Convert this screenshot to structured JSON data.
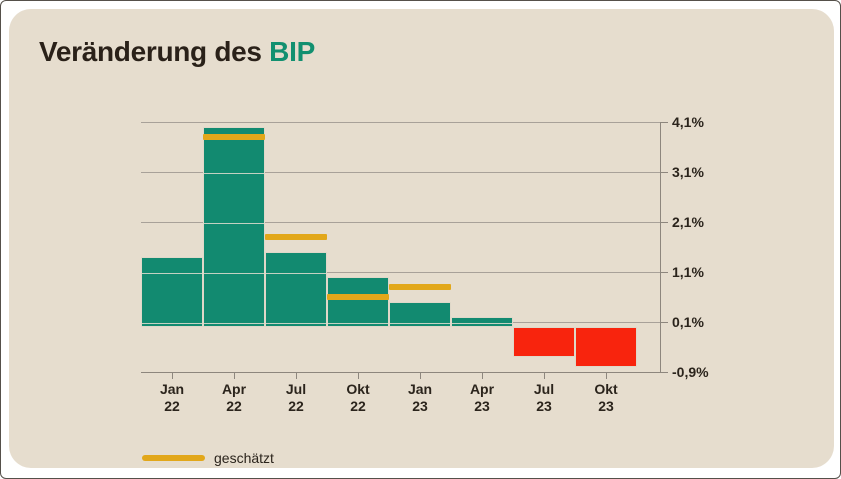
{
  "window": {
    "background": "#FFFFFF",
    "border_color": "#55504A"
  },
  "card": {
    "background": "#E6DDCE"
  },
  "title": {
    "prefix": "Veränderung des ",
    "highlight": "BIP",
    "prefix_color": "#2A2119",
    "highlight_color": "#129070"
  },
  "legend": {
    "label": "geschätzt",
    "swatch_color": "#E2A71A"
  },
  "chart_data": {
    "type": "bar",
    "categories": [
      "Jan 22",
      "Apr 22",
      "Jul 22",
      "Okt 22",
      "Jan 23",
      "Apr 23",
      "Jul 23",
      "Okt 23"
    ],
    "series": [
      {
        "name": "Veränderung des BIP",
        "values": [
          1.4,
          4.0,
          1.5,
          1.0,
          0.5,
          0.2,
          -0.6,
          -0.8
        ]
      },
      {
        "name": "geschätzt",
        "values": [
          null,
          3.8,
          1.8,
          0.6,
          0.8,
          null,
          null,
          null
        ]
      }
    ],
    "title": "Veränderung des BIP",
    "xlabel": "",
    "ylabel": "",
    "ylim": [
      -0.9,
      4.1
    ],
    "y_ticks": [
      4.1,
      3.1,
      2.1,
      1.1,
      0.1,
      -0.9
    ],
    "y_tick_labels": [
      "4,1%",
      "3,1%",
      "2,1%",
      "1,1%",
      "0,1%",
      "-0,9%"
    ],
    "grid": true,
    "axis_side": "right",
    "legend_position": "bottom-left",
    "bar_color_positive": "#128A70",
    "bar_color_negative": "#F8240D",
    "estimate_color": "#E2A71A",
    "grid_color": "#A8A199",
    "axis_color": "#8D867D",
    "tick_label_color": "#2B241C"
  }
}
